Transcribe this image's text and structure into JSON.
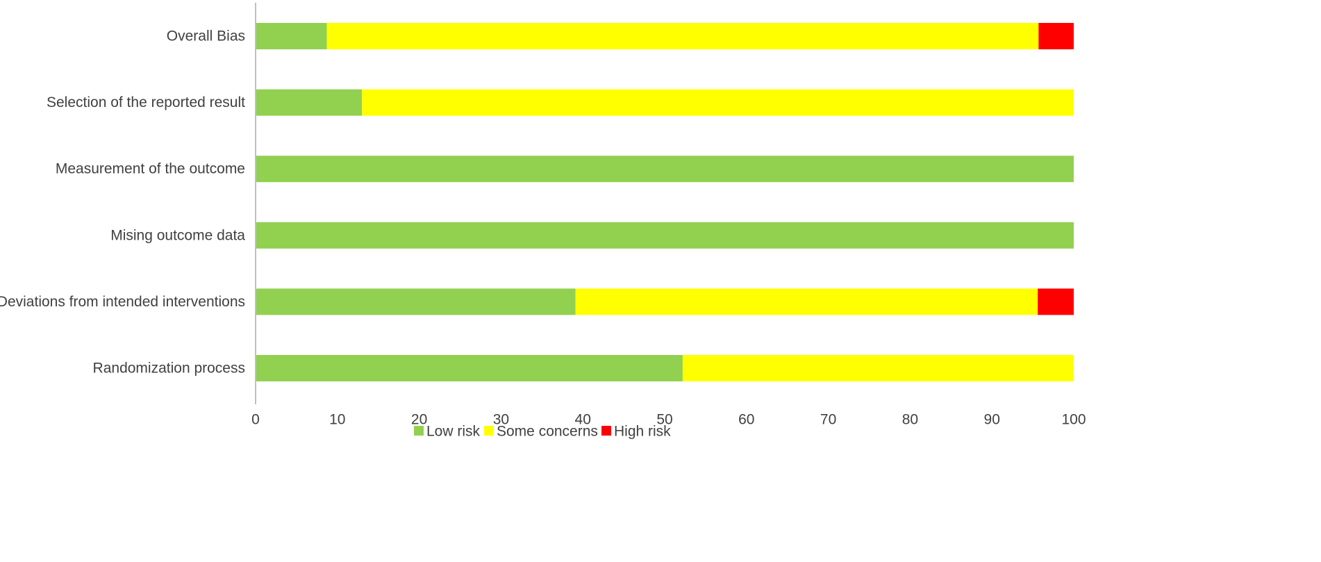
{
  "chart_data": {
    "type": "bar",
    "orientation": "horizontal",
    "stacked": true,
    "title": "",
    "xlabel": "",
    "ylabel": "",
    "xlim": [
      0,
      100
    ],
    "xticks": [
      0,
      10,
      20,
      30,
      40,
      50,
      60,
      70,
      80,
      90,
      100
    ],
    "grid": false,
    "legend_position": "bottom",
    "categories": [
      "Overall Bias",
      "Selection of the reported result",
      "Measurement of the outcome",
      "Mising outcome data",
      "Deviations from intended interventions",
      "Randomization process"
    ],
    "series": [
      {
        "name": "Low risk",
        "color": "#92d050",
        "values": [
          8.7,
          13.0,
          100,
          100,
          39.1,
          52.2
        ]
      },
      {
        "name": "Some concerns",
        "color": "#ffff00",
        "values": [
          87.0,
          87.0,
          0,
          0,
          56.5,
          47.8
        ]
      },
      {
        "name": "High risk",
        "color": "#ff0000",
        "values": [
          4.3,
          0,
          0,
          0,
          4.4,
          0
        ]
      }
    ]
  }
}
